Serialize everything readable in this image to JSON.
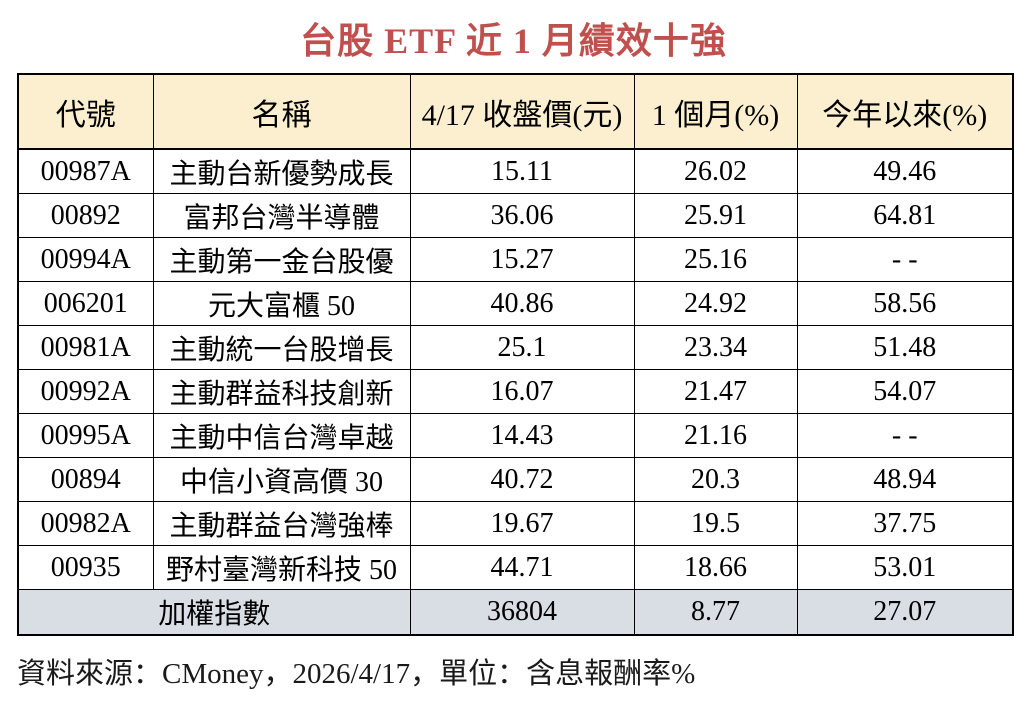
{
  "title": "台股 ETF 近 1 月績效十強",
  "colors": {
    "title_text": "#C0504D",
    "header_bg": "#FBEFCF",
    "summary_bg": "#D9DEE5",
    "border": "#000000",
    "page_bg": "#FFFFFF"
  },
  "table": {
    "headers": [
      "代號",
      "名稱",
      "4/17 收盤價(元)",
      "1 個月(%)",
      "今年以來(%)"
    ],
    "rows": [
      [
        "00987A",
        "主動台新優勢成長",
        "15.11",
        "26.02",
        "49.46"
      ],
      [
        "00892",
        "富邦台灣半導體",
        "36.06",
        "25.91",
        "64.81"
      ],
      [
        "00994A",
        "主動第一金台股優",
        "15.27",
        "25.16",
        "- -"
      ],
      [
        "006201",
        "元大富櫃 50",
        "40.86",
        "24.92",
        "58.56"
      ],
      [
        "00981A",
        "主動統一台股增長",
        "25.1",
        "23.34",
        "51.48"
      ],
      [
        "00992A",
        "主動群益科技創新",
        "16.07",
        "21.47",
        "54.07"
      ],
      [
        "00995A",
        "主動中信台灣卓越",
        "14.43",
        "21.16",
        "- -"
      ],
      [
        "00894",
        "中信小資高價 30",
        "40.72",
        "20.3",
        "48.94"
      ],
      [
        "00982A",
        "主動群益台灣強棒",
        "19.67",
        "19.5",
        "37.75"
      ],
      [
        "00935",
        "野村臺灣新科技 50",
        "44.71",
        "18.66",
        "53.01"
      ]
    ],
    "summary": {
      "label": "加權指數",
      "values": [
        "36804",
        "8.77",
        "27.07"
      ]
    }
  },
  "footer": {
    "source_note": "資料來源：CMoney，2026/4/17，單位：含息報酬率%"
  },
  "chart_data": {
    "type": "table",
    "title": "台股 ETF 近 1 月績效十強",
    "columns": [
      "代號",
      "名稱",
      "4/17 收盤價(元)",
      "1 個月(%)",
      "今年以來(%)"
    ],
    "rows": [
      {
        "code": "00987A",
        "name": "主動台新優勢成長",
        "close_price": 15.11,
        "one_month_pct": 26.02,
        "ytd_pct": 49.46
      },
      {
        "code": "00892",
        "name": "富邦台灣半導體",
        "close_price": 36.06,
        "one_month_pct": 25.91,
        "ytd_pct": 64.81
      },
      {
        "code": "00994A",
        "name": "主動第一金台股優",
        "close_price": 15.27,
        "one_month_pct": 25.16,
        "ytd_pct": null
      },
      {
        "code": "006201",
        "name": "元大富櫃 50",
        "close_price": 40.86,
        "one_month_pct": 24.92,
        "ytd_pct": 58.56
      },
      {
        "code": "00981A",
        "name": "主動統一台股增長",
        "close_price": 25.1,
        "one_month_pct": 23.34,
        "ytd_pct": 51.48
      },
      {
        "code": "00992A",
        "name": "主動群益科技創新",
        "close_price": 16.07,
        "one_month_pct": 21.47,
        "ytd_pct": 54.07
      },
      {
        "code": "00995A",
        "name": "主動中信台灣卓越",
        "close_price": 14.43,
        "one_month_pct": 21.16,
        "ytd_pct": null
      },
      {
        "code": "00894",
        "name": "中信小資高價 30",
        "close_price": 40.72,
        "one_month_pct": 20.3,
        "ytd_pct": 48.94
      },
      {
        "code": "00982A",
        "name": "主動群益台灣強棒",
        "close_price": 19.67,
        "one_month_pct": 19.5,
        "ytd_pct": 37.75
      },
      {
        "code": "00935",
        "name": "野村臺灣新科技 50",
        "close_price": 44.71,
        "one_month_pct": 18.66,
        "ytd_pct": 53.01
      }
    ],
    "summary_row": {
      "name": "加權指數",
      "close_price": 36804,
      "one_month_pct": 8.77,
      "ytd_pct": 27.07
    },
    "note": "資料來源：CMoney，2026/4/17，單位：含息報酬率%"
  }
}
